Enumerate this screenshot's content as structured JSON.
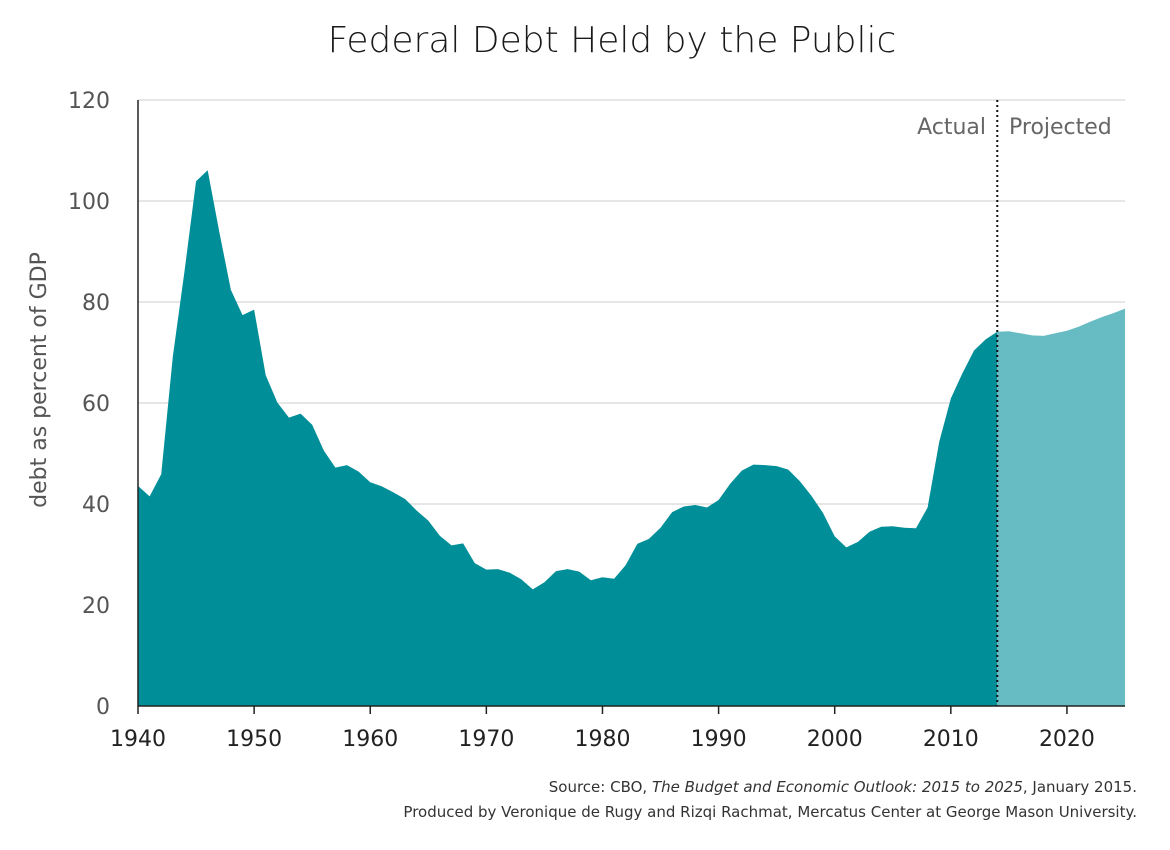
{
  "chart_data": {
    "type": "area",
    "title": "Federal Debt Held by the Public",
    "ylabel": "debt as percent of GDP",
    "xlabel": "",
    "xlim": [
      1940,
      2025
    ],
    "ylim": [
      0,
      120
    ],
    "x_ticks": [
      1940,
      1950,
      1960,
      1970,
      1980,
      1990,
      2000,
      2010,
      2020
    ],
    "y_ticks": [
      0,
      20,
      40,
      60,
      80,
      100,
      120
    ],
    "grid": "horizontal",
    "divider_year": 2014,
    "section_labels": {
      "actual": "Actual",
      "projected": "Projected"
    },
    "colors": {
      "actual": "#008f98",
      "projected": "#66bcc2",
      "grid": "#cccccc",
      "divider": "#111111"
    },
    "actual": {
      "x": [
        1940,
        1941,
        1942,
        1943,
        1944,
        1945,
        1946,
        1947,
        1948,
        1949,
        1950,
        1951,
        1952,
        1953,
        1954,
        1955,
        1956,
        1957,
        1958,
        1959,
        1960,
        1961,
        1962,
        1963,
        1964,
        1965,
        1966,
        1967,
        1968,
        1969,
        1970,
        1971,
        1972,
        1973,
        1974,
        1975,
        1976,
        1977,
        1978,
        1979,
        1980,
        1981,
        1982,
        1983,
        1984,
        1985,
        1986,
        1987,
        1988,
        1989,
        1990,
        1991,
        1992,
        1993,
        1994,
        1995,
        1996,
        1997,
        1998,
        1999,
        2000,
        2001,
        2002,
        2003,
        2004,
        2005,
        2006,
        2007,
        2008,
        2009,
        2010,
        2011,
        2012,
        2013,
        2014
      ],
      "y": [
        43.6,
        41.5,
        45.9,
        69.2,
        86.0,
        103.9,
        106.1,
        93.9,
        82.4,
        77.4,
        78.5,
        65.5,
        60.1,
        57.1,
        57.9,
        55.7,
        50.6,
        47.2,
        47.7,
        46.4,
        44.3,
        43.5,
        42.3,
        41.0,
        38.7,
        36.7,
        33.7,
        31.8,
        32.2,
        28.3,
        27.0,
        27.1,
        26.4,
        25.1,
        23.1,
        24.5,
        26.7,
        27.1,
        26.6,
        24.9,
        25.5,
        25.2,
        27.9,
        32.1,
        33.1,
        35.3,
        38.4,
        39.5,
        39.8,
        39.3,
        40.8,
        44.0,
        46.6,
        47.8,
        47.7,
        47.5,
        46.8,
        44.5,
        41.6,
        38.2,
        33.6,
        31.4,
        32.5,
        34.5,
        35.5,
        35.6,
        35.3,
        35.2,
        39.3,
        52.3,
        60.9,
        65.9,
        70.4,
        72.6,
        74.1
      ]
    },
    "projected": {
      "x": [
        2014,
        2015,
        2016,
        2017,
        2018,
        2019,
        2020,
        2021,
        2022,
        2023,
        2024,
        2025
      ],
      "y": [
        74.1,
        74.2,
        73.8,
        73.4,
        73.3,
        73.8,
        74.3,
        75.1,
        76.1,
        77.0,
        77.8,
        78.7
      ]
    }
  },
  "source": {
    "line1_prefix": "Source: CBO, ",
    "line1_italic": "The Budget and Economic Outlook: 2015 to 2025",
    "line1_suffix": ", January 2015.",
    "line2": "Produced by Veronique de Rugy and Rizqi Rachmat, Mercatus Center at George Mason University."
  }
}
